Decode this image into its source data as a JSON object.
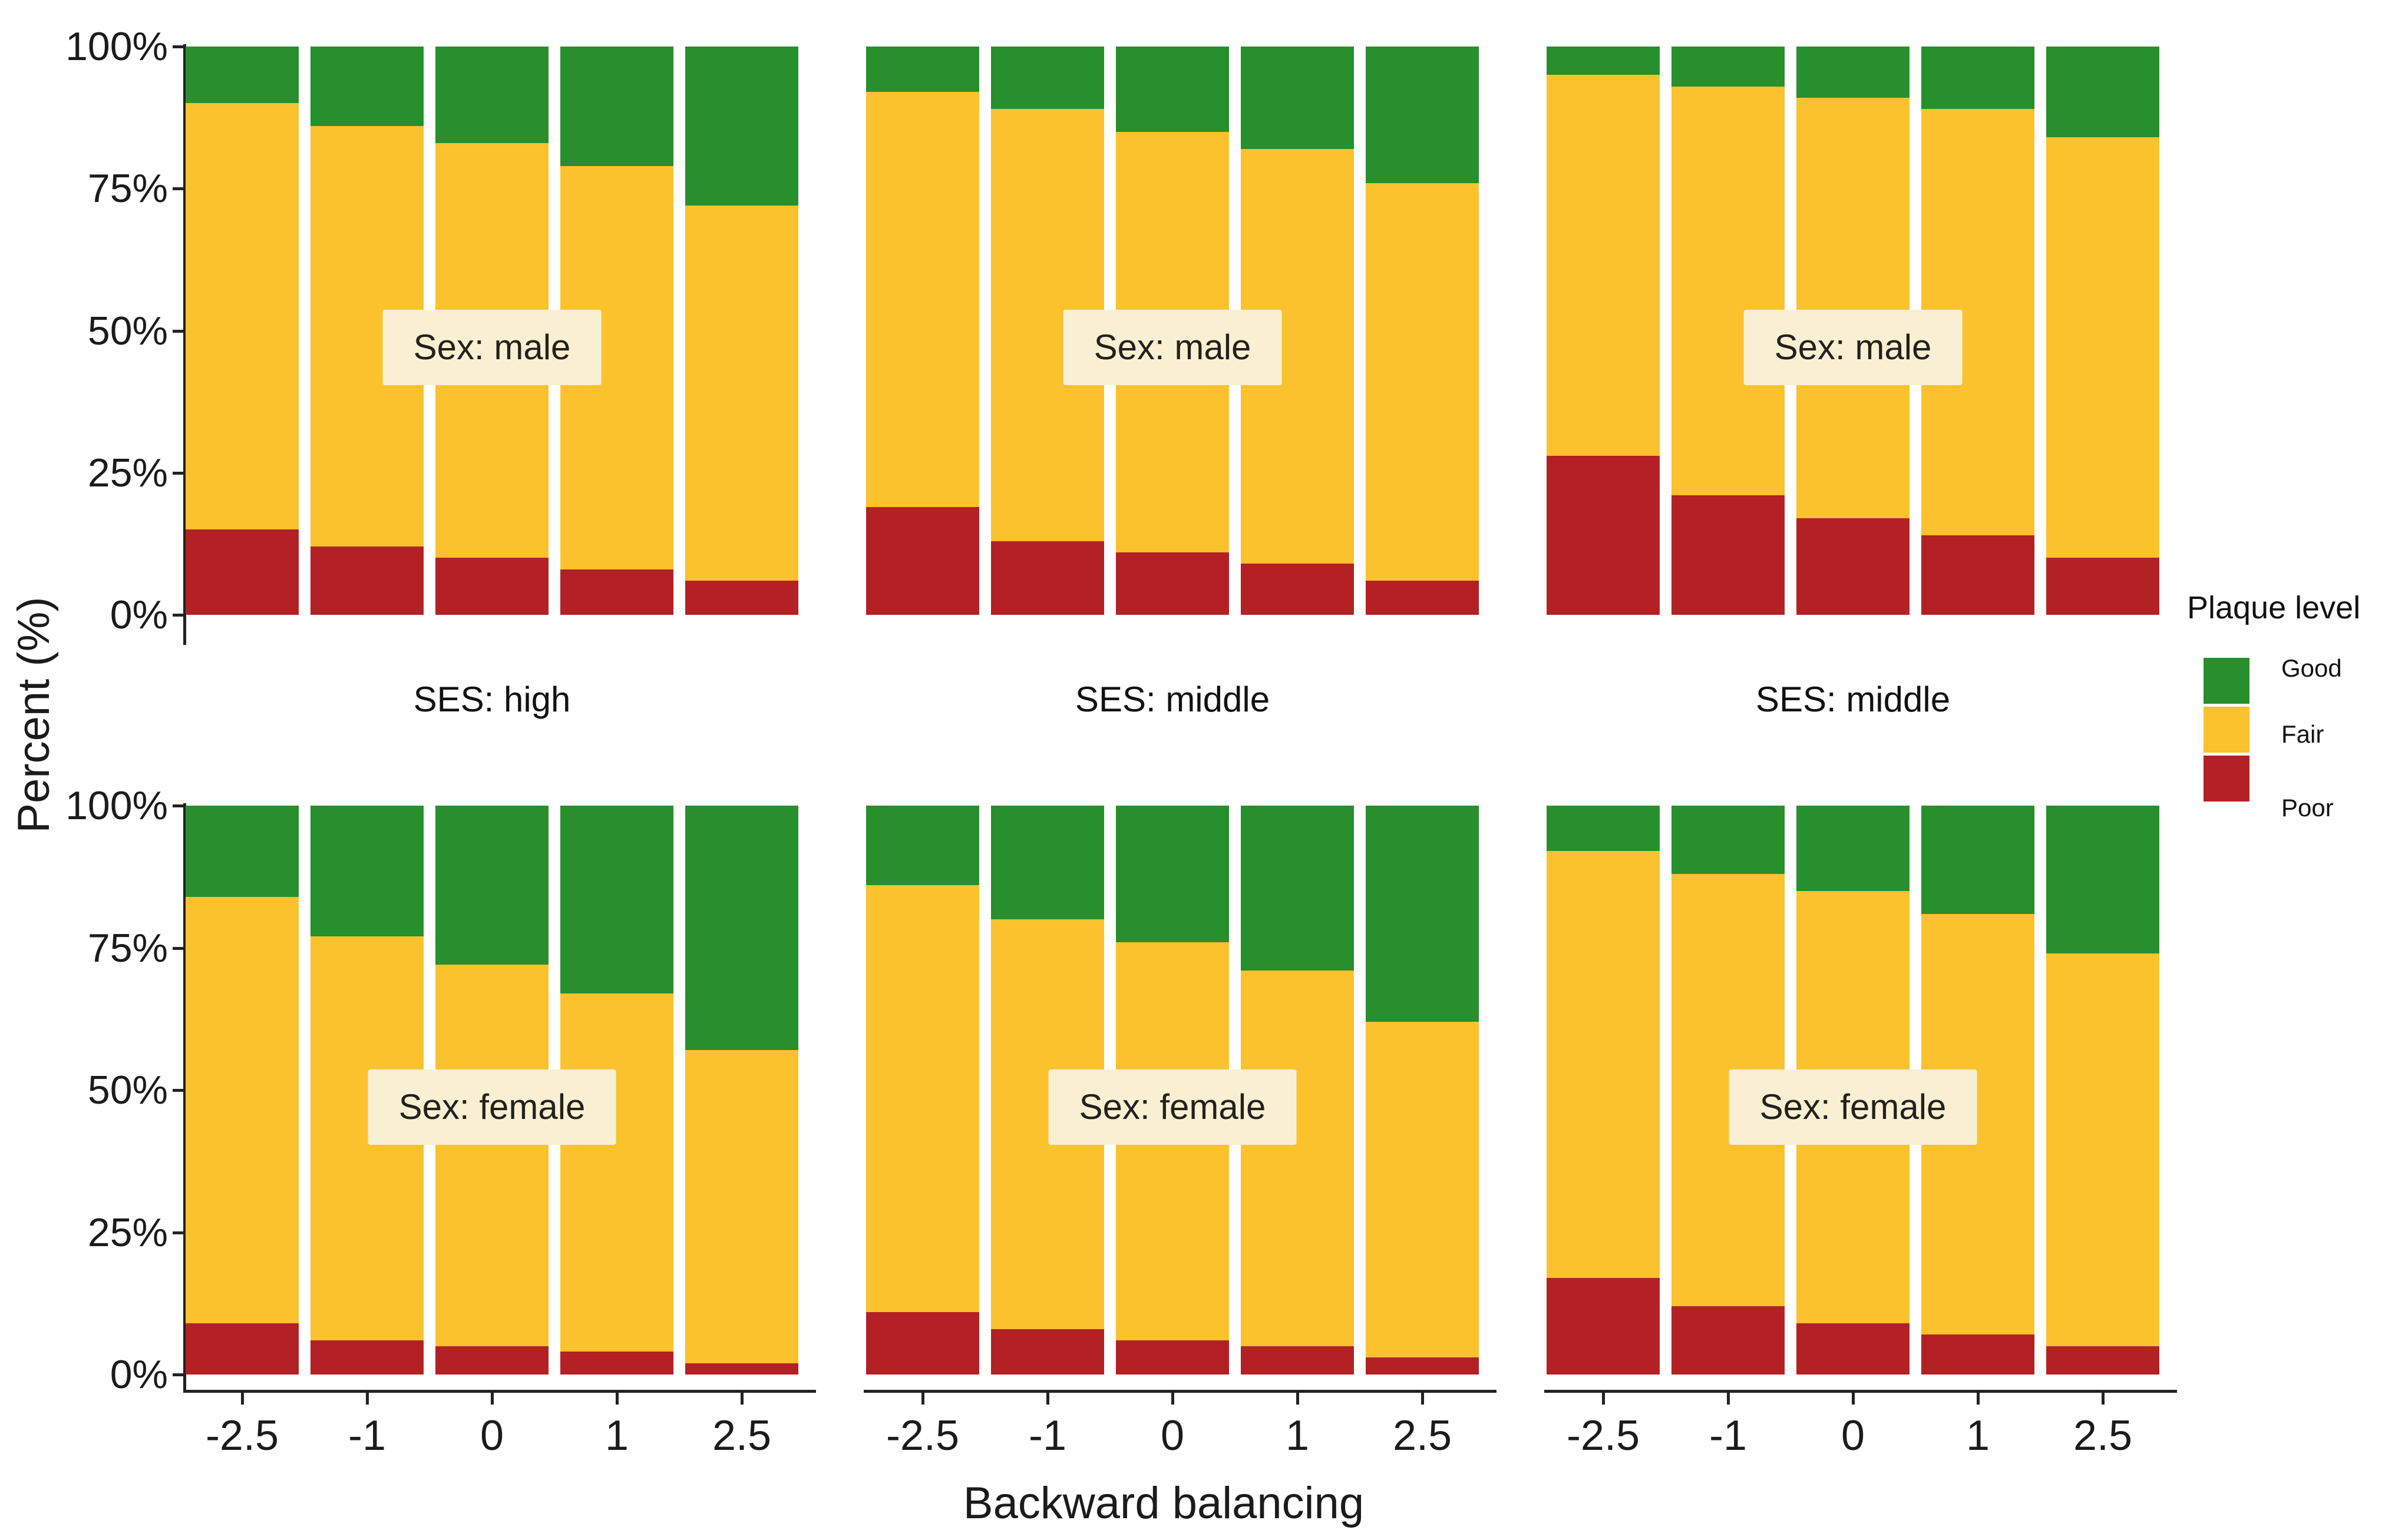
{
  "figure": {
    "background": "#ffffff",
    "x_axis": {
      "title": "Backward balancing",
      "tick_labels": [
        "-2.5",
        "-1",
        "0",
        "1",
        "2.5"
      ]
    },
    "y_axis": {
      "title": "Percent (%)",
      "tick_labels": [
        "100%",
        "75%",
        "50%",
        "25%",
        "0%"
      ]
    },
    "legend": {
      "title": "Plaque level",
      "entries": [
        {
          "label": "Good",
          "color": "#278F2C"
        },
        {
          "label": "Fair",
          "color": "#FBC22D"
        },
        {
          "label": "Poor",
          "color": "#B32125"
        }
      ]
    },
    "facet_row_labels": [
      "Sex: male",
      "Sex: female"
    ],
    "facet_col_labels": [
      "SES: high",
      "SES: middle",
      "SES: middle"
    ],
    "colors": {
      "good_green": "#278F2C",
      "fair_yellow": "#FBC22D",
      "poor_red": "#B32125",
      "facet_box_bg": "#F9F0D4",
      "axis": "#222222",
      "text": "#1b1b1b"
    }
  },
  "chart_data": {
    "type": "bar",
    "stacked": true,
    "unit": "percent",
    "ylim": [
      0,
      100
    ],
    "grid": false,
    "legend_position": "right",
    "x_categories": [
      "-2.5",
      "-1",
      "0",
      "1",
      "2.5"
    ],
    "stack_order_bottom_to_top": [
      "Poor",
      "Fair",
      "Good"
    ],
    "panels": [
      {
        "facet_row": "Sex: male",
        "facet_col": "SES: high",
        "series": [
          {
            "name": "Poor",
            "values": [
              15,
              12,
              10,
              8,
              6
            ]
          },
          {
            "name": "Fair",
            "values": [
              75,
              74,
              73,
              71,
              66
            ]
          },
          {
            "name": "Good",
            "values": [
              10,
              14,
              17,
              21,
              28
            ]
          }
        ]
      },
      {
        "facet_row": "Sex: male",
        "facet_col": "SES: middle",
        "series": [
          {
            "name": "Poor",
            "values": [
              19,
              13,
              11,
              9,
              6
            ]
          },
          {
            "name": "Fair",
            "values": [
              73,
              76,
              74,
              73,
              70
            ]
          },
          {
            "name": "Good",
            "values": [
              8,
              11,
              15,
              18,
              24
            ]
          }
        ]
      },
      {
        "facet_row": "Sex: male",
        "facet_col": "SES: middle",
        "series": [
          {
            "name": "Poor",
            "values": [
              28,
              21,
              17,
              14,
              10
            ]
          },
          {
            "name": "Fair",
            "values": [
              67,
              72,
              74,
              75,
              74
            ]
          },
          {
            "name": "Good",
            "values": [
              5,
              7,
              9,
              11,
              16
            ]
          }
        ]
      },
      {
        "facet_row": "Sex: female",
        "facet_col": "SES: high",
        "series": [
          {
            "name": "Poor",
            "values": [
              9,
              6,
              5,
              4,
              2
            ]
          },
          {
            "name": "Fair",
            "values": [
              75,
              71,
              67,
              63,
              55
            ]
          },
          {
            "name": "Good",
            "values": [
              16,
              23,
              28,
              33,
              43
            ]
          }
        ]
      },
      {
        "facet_row": "Sex: female",
        "facet_col": "SES: middle",
        "series": [
          {
            "name": "Poor",
            "values": [
              11,
              8,
              6,
              5,
              3
            ]
          },
          {
            "name": "Fair",
            "values": [
              75,
              72,
              70,
              66,
              59
            ]
          },
          {
            "name": "Good",
            "values": [
              14,
              20,
              24,
              29,
              38
            ]
          }
        ]
      },
      {
        "facet_row": "Sex: female",
        "facet_col": "SES: middle",
        "series": [
          {
            "name": "Poor",
            "values": [
              17,
              12,
              9,
              7,
              5
            ]
          },
          {
            "name": "Fair",
            "values": [
              75,
              76,
              76,
              74,
              69
            ]
          },
          {
            "name": "Good",
            "values": [
              8,
              12,
              15,
              19,
              26
            ]
          }
        ]
      }
    ]
  }
}
